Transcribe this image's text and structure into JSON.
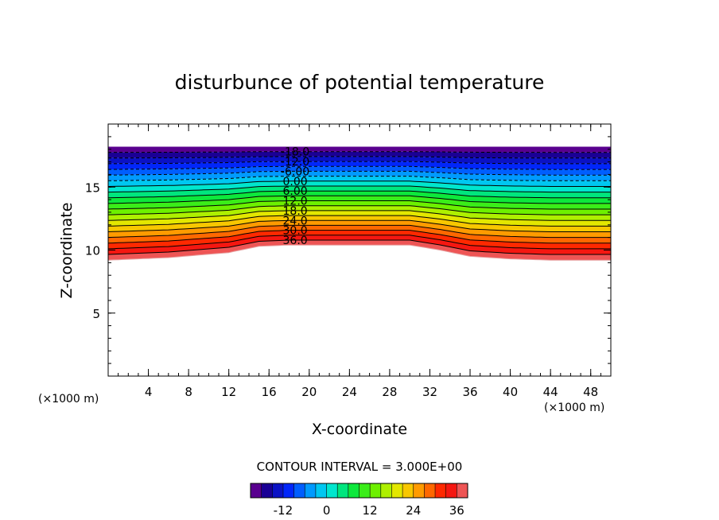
{
  "chart_data": {
    "type": "contour",
    "title": "disturbunce of potential temperature",
    "xlabel": "X-coordinate",
    "ylabel": "Z-coordinate",
    "x_unit_left": "(×1000 m)",
    "x_unit_right": "(×1000 m)",
    "xlim": [
      0,
      50
    ],
    "ylim": [
      0,
      20
    ],
    "x_ticks": [
      "4",
      "8",
      "12",
      "16",
      "20",
      "24",
      "28",
      "32",
      "36",
      "40",
      "44",
      "48"
    ],
    "x_tick_values": [
      4,
      8,
      12,
      16,
      20,
      24,
      28,
      32,
      36,
      40,
      44,
      48
    ],
    "y_ticks": [
      "5",
      "10",
      "15"
    ],
    "y_tick_values": [
      5,
      10,
      15
    ],
    "contour_interval_text": "CONTOUR INTERVAL = 3.000E+00",
    "contour_interval": 3.0,
    "field_range": [
      -21,
      39
    ],
    "bottom_profile": {
      "x": [
        0,
        3,
        6,
        9,
        12,
        15,
        18,
        22,
        26,
        30,
        33,
        36,
        40,
        44,
        48,
        50
      ],
      "z": [
        9.2,
        9.3,
        9.4,
        9.6,
        9.8,
        10.3,
        10.4,
        10.4,
        10.4,
        10.4,
        10.0,
        9.5,
        9.3,
        9.2,
        9.2,
        9.2
      ]
    },
    "top_z": 18.2,
    "field_bottom_value": 39,
    "field_top_value": -21,
    "contour_labels": [
      {
        "text": "-18.0",
        "value": -18
      },
      {
        "text": "-12.0",
        "value": -12
      },
      {
        "text": "-6.00",
        "value": -6
      },
      {
        "text": "0.00",
        "value": 0
      },
      {
        "text": "6.00",
        "value": 6
      },
      {
        "text": "12.0",
        "value": 12
      },
      {
        "text": "18.0",
        "value": 18
      },
      {
        "text": "24.0",
        "value": 24
      },
      {
        "text": "30.0",
        "value": 30
      },
      {
        "text": "36.0",
        "value": 36
      }
    ],
    "colorbar": {
      "min": -21,
      "max": 39,
      "tick_labels": [
        "-12",
        "0",
        "12",
        "24",
        "36"
      ],
      "tick_values": [
        -12,
        0,
        12,
        24,
        36
      ]
    },
    "negative_contours_style": "dashed"
  }
}
